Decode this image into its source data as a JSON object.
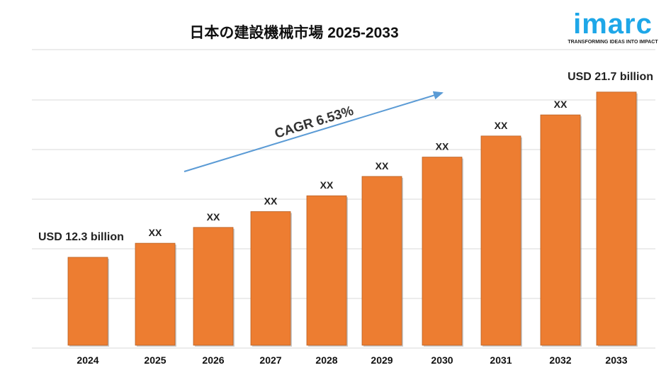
{
  "logo": {
    "word": "imarc",
    "tagline": "TRANSFORMING IDEAS INTO IMPACT"
  },
  "chart_data": {
    "type": "bar",
    "title": "日本の建設機械市場 2025-2033",
    "categories": [
      "2024",
      "2025",
      "2026",
      "2027",
      "2028",
      "2029",
      "2030",
      "2031",
      "2032",
      "2033"
    ],
    "values": [
      12.3,
      13.1,
      14.0,
      14.9,
      15.8,
      16.9,
      18.0,
      19.2,
      20.4,
      21.7
    ],
    "data_labels": [
      "USD 12.3 billion",
      "XX",
      "XX",
      "XX",
      "XX",
      "XX",
      "XX",
      "XX",
      "XX",
      "USD 21.7 billion"
    ],
    "annotation": "CAGR 6.53%",
    "ylabel": "",
    "xlabel": "",
    "grid": true,
    "colors": {
      "bar": "#ed7d31",
      "arrow": "#5b9bd5",
      "grid": "#d9d9d9"
    }
  }
}
